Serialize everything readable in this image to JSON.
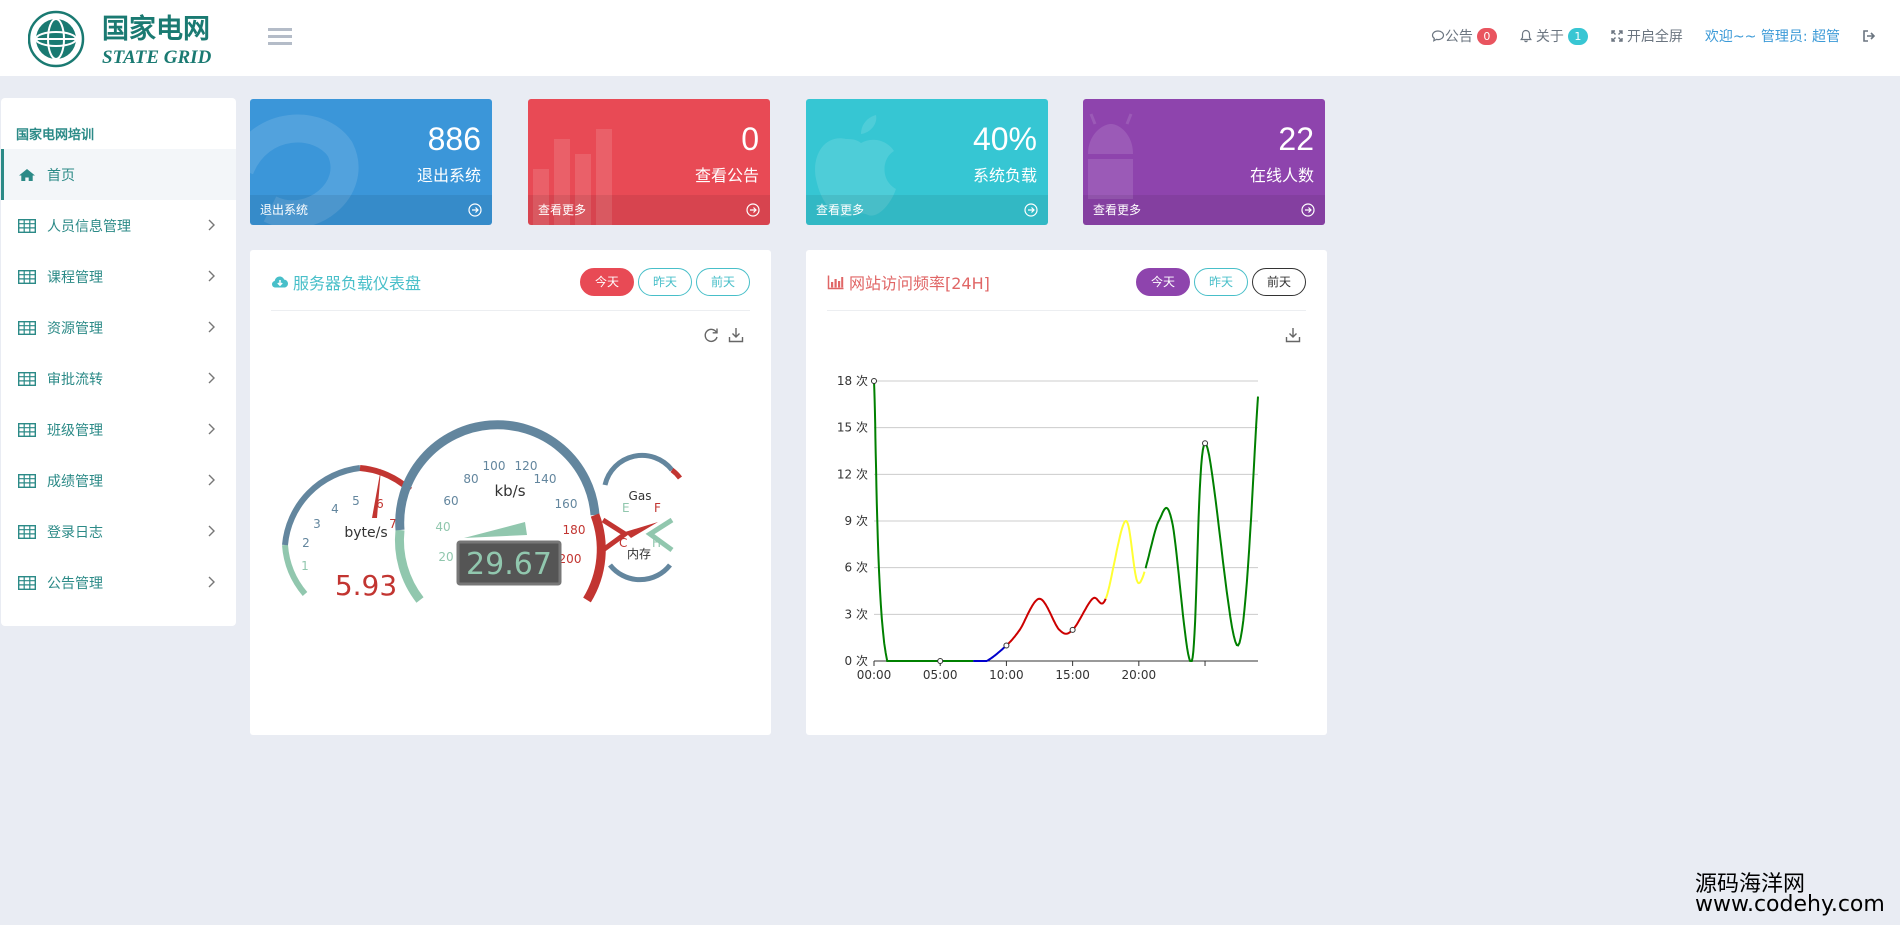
{
  "brand": {
    "name_cn": "国家电网",
    "name_en": "STATE GRID"
  },
  "header": {
    "notice_label": "公告",
    "notice_count": "0",
    "about_label": "关于",
    "about_count": "1",
    "fullscreen_label": "开启全屏",
    "welcome": "欢迎~~ 管理员: 超管",
    "icons": [
      "menu-icon",
      "comment-icon",
      "bell-icon",
      "expand-icon",
      "logout-icon"
    ]
  },
  "sidebar": {
    "title": "国家电网培训",
    "items": [
      {
        "label": "首页",
        "icon": "home-icon",
        "active": true
      },
      {
        "label": "人员信息管理",
        "icon": "table-icon"
      },
      {
        "label": "课程管理",
        "icon": "table-icon"
      },
      {
        "label": "资源管理",
        "icon": "table-icon"
      },
      {
        "label": "审批流转",
        "icon": "table-icon"
      },
      {
        "label": "班级管理",
        "icon": "table-icon"
      },
      {
        "label": "成绩管理",
        "icon": "table-icon"
      },
      {
        "label": "登录日志",
        "icon": "table-icon"
      },
      {
        "label": "公告管理",
        "icon": "table-icon"
      }
    ]
  },
  "cards": [
    {
      "value": "886",
      "label": "退出系统",
      "footer": "退出系统",
      "color": "#3b96d9",
      "icon": "skype-icon"
    },
    {
      "value": "0",
      "label": "查看公告",
      "footer": "查看更多",
      "color": "#e84a55",
      "icon": "bar-chart-icon"
    },
    {
      "value": "40%",
      "label": "系统负载",
      "footer": "查看更多",
      "color": "#36c6d3",
      "icon": "apple-icon"
    },
    {
      "value": "22",
      "label": "在线人数",
      "footer": "查看更多",
      "color": "#8e44ad",
      "icon": "android-icon"
    }
  ],
  "gauge_panel": {
    "title": "服务器负载仪表盘",
    "title_color": "#48bfc9",
    "pills": [
      "今天",
      "昨天",
      "前天"
    ],
    "active_pill_color": "#e84a55",
    "gauges": {
      "speed": {
        "unit": "kb/s",
        "value": "29.67",
        "min": 0,
        "max": 220,
        "ticks": [
          "20",
          "40",
          "60",
          "80",
          "100",
          "120",
          "140",
          "160",
          "180",
          "200"
        ]
      },
      "rpm": {
        "unit": "byte/s",
        "value": "5.93",
        "min": 0,
        "max": 7,
        "ticks": [
          "1",
          "2",
          "3",
          "4",
          "5",
          "6",
          "7"
        ]
      },
      "fuel": {
        "labels": [
          "Gas",
          "E",
          "F",
          "C",
          "H",
          "内存"
        ]
      }
    }
  },
  "chart_panel": {
    "title": "网站访问频率[24H]",
    "title_color": "#e06666",
    "pills": [
      "今天",
      "昨天",
      "前天"
    ],
    "active_pill_color": "#8e44ad",
    "chart_data": {
      "type": "line",
      "x_ticks": [
        "00:00",
        "05:00",
        "10:00",
        "15:00",
        "20:00"
      ],
      "y_ticks": [
        "0 次",
        "3 次",
        "6 次",
        "9 次",
        "12 次",
        "15 次",
        "18 次"
      ],
      "ylim": [
        0,
        18
      ],
      "xlim": [
        0,
        29
      ],
      "grid": true,
      "points": [
        {
          "x": 0,
          "y": 18
        },
        {
          "x": 1,
          "y": 0
        },
        {
          "x": 5,
          "y": 0
        },
        {
          "x": 7.5,
          "y": 0
        },
        {
          "x": 8.5,
          "y": 0
        },
        {
          "x": 10,
          "y": 1
        },
        {
          "x": 11,
          "y": 2
        },
        {
          "x": 12.5,
          "y": 4
        },
        {
          "x": 14,
          "y": 2
        },
        {
          "x": 15,
          "y": 2
        },
        {
          "x": 16.5,
          "y": 4
        },
        {
          "x": 17.5,
          "y": 4
        },
        {
          "x": 19,
          "y": 9
        },
        {
          "x": 20,
          "y": 5
        },
        {
          "x": 21.5,
          "y": 9
        },
        {
          "x": 22.5,
          "y": 9
        },
        {
          "x": 24,
          "y": 0
        },
        {
          "x": 25,
          "y": 14
        },
        {
          "x": 27.5,
          "y": 1
        },
        {
          "x": 29,
          "y": 17
        }
      ],
      "segments": [
        {
          "from": 0,
          "to": 7.5,
          "color": "#008000"
        },
        {
          "from": 7.5,
          "to": 10,
          "color": "#0000cc"
        },
        {
          "from": 10,
          "to": 17.5,
          "color": "#cc0000"
        },
        {
          "from": 17.5,
          "to": 20.5,
          "color": "#ffff33"
        },
        {
          "from": 20.5,
          "to": 29,
          "color": "#008000"
        }
      ]
    }
  }
}
